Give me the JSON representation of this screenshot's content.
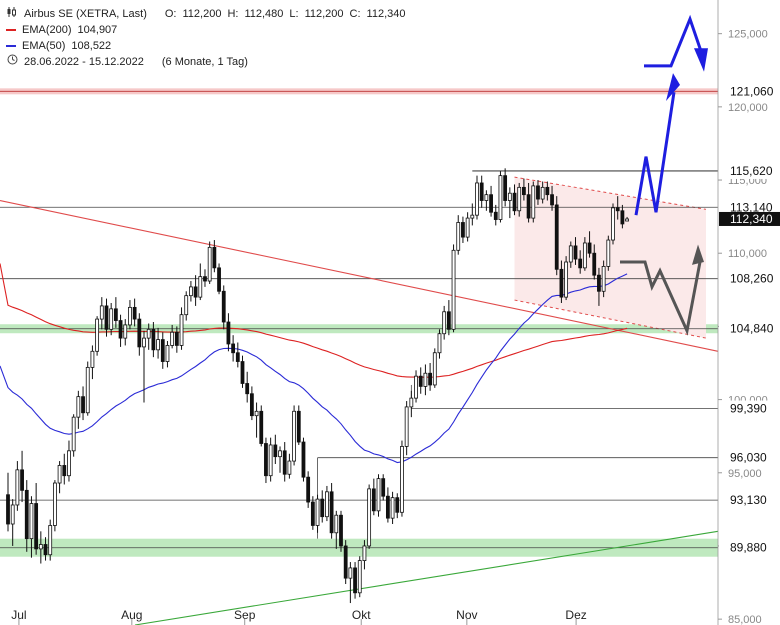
{
  "legend": {
    "instrument": "Airbus SE (XETRA, Last)",
    "open_label": "O:",
    "open": "112,200",
    "high_label": "H:",
    "high": "112,480",
    "low_label": "L:",
    "low": "112,200",
    "close_label": "C:",
    "close": "112,340",
    "ema200_label": "EMA(200)",
    "ema200_value": "104,907",
    "ema50_label": "EMA(50)",
    "ema50_value": "108,522",
    "period": "28.06.2022 - 15.12.2022",
    "period_detail": "(6 Monate, 1 Tag)",
    "chart_icon": "candlestick-icon",
    "clock_icon": "clock-icon"
  },
  "colors": {
    "ema200": "#dd2222",
    "ema50": "#2b2bd6",
    "candle": "#111111",
    "trend_red": "#e04b4b",
    "trend_green": "#3aa83a",
    "zone_green": "#bfe9bf",
    "zone_red": "#f6c9c9",
    "arrow_blue": "#1e1ee0",
    "arrow_gray": "#555555",
    "channel_fill": "#fbe9e9"
  },
  "chart_data": {
    "type": "candlestick",
    "title": "Airbus SE (XETRA, Last)",
    "ylim": [
      84.6,
      127.3
    ],
    "y_ticks": [
      85,
      90,
      95,
      100,
      105,
      110,
      115,
      120,
      125
    ],
    "y_tick_labels": [
      "85,000",
      "90,000",
      "95,000",
      "100,000",
      "105,000",
      "110,000",
      "115,000",
      "120,000",
      "125,000"
    ],
    "x_ticks": [
      {
        "label": "Jul",
        "date": "2022-07-01"
      },
      {
        "label": "Aug",
        "date": "2022-08-01"
      },
      {
        "label": "Sep",
        "date": "2022-09-01"
      },
      {
        "label": "Okt",
        "date": "2022-10-03"
      },
      {
        "label": "Nov",
        "date": "2022-11-01"
      },
      {
        "label": "Dez",
        "date": "2022-12-01"
      }
    ],
    "price_levels": [
      {
        "value": 121.06,
        "label": "121,060",
        "zone": "red"
      },
      {
        "value": 115.62,
        "label": "115,620"
      },
      {
        "value": 113.14,
        "label": "113,140"
      },
      {
        "value": 108.26,
        "label": "108,260"
      },
      {
        "value": 104.84,
        "label": "104,840",
        "zone": "green"
      },
      {
        "value": 99.39,
        "label": "99,390"
      },
      {
        "value": 96.03,
        "label": "96,030"
      },
      {
        "value": 93.13,
        "label": "93,130"
      },
      {
        "value": 89.88,
        "label": "89,880",
        "zone": "green"
      }
    ],
    "last_price": {
      "value": 112.34,
      "label": "112,340"
    },
    "ohlc": [
      [
        93.5,
        95.0,
        91.0,
        91.5
      ],
      [
        91.5,
        93.2,
        90.0,
        92.8
      ],
      [
        92.8,
        95.8,
        92.4,
        95.2
      ],
      [
        95.2,
        96.5,
        93.0,
        93.8
      ],
      [
        93.8,
        94.5,
        89.6,
        90.5
      ],
      [
        90.5,
        93.4,
        89.2,
        92.9
      ],
      [
        92.9,
        94.3,
        89.4,
        89.8
      ],
      [
        89.8,
        91.0,
        88.8,
        90.1
      ],
      [
        90.1,
        90.6,
        89.0,
        89.4
      ],
      [
        89.4,
        91.8,
        89.0,
        91.4
      ],
      [
        91.4,
        94.5,
        91.0,
        94.3
      ],
      [
        94.3,
        95.8,
        93.6,
        95.5
      ],
      [
        95.5,
        96.3,
        94.2,
        94.8
      ],
      [
        94.8,
        97.2,
        94.4,
        96.5
      ],
      [
        96.5,
        99.0,
        96.1,
        98.8
      ],
      [
        98.8,
        100.6,
        98.0,
        100.2
      ],
      [
        100.2,
        100.9,
        98.6,
        99.1
      ],
      [
        99.1,
        102.6,
        98.9,
        102.2
      ],
      [
        102.2,
        103.7,
        101.4,
        103.3
      ],
      [
        103.3,
        105.7,
        103.0,
        105.5
      ],
      [
        105.5,
        107.0,
        104.8,
        106.4
      ],
      [
        106.4,
        106.9,
        104.3,
        104.8
      ],
      [
        104.8,
        106.6,
        104.4,
        106.2
      ],
      [
        106.2,
        107.0,
        104.9,
        105.4
      ],
      [
        105.4,
        105.8,
        103.6,
        104.2
      ],
      [
        104.2,
        105.5,
        103.7,
        105.1
      ],
      [
        105.1,
        106.8,
        104.8,
        106.3
      ],
      [
        106.3,
        106.9,
        105.0,
        105.5
      ],
      [
        105.5,
        105.9,
        103.0,
        103.6
      ],
      [
        103.6,
        104.7,
        99.8,
        104.2
      ],
      [
        104.2,
        105.2,
        103.4,
        104.8
      ],
      [
        104.8,
        105.3,
        102.9,
        103.4
      ],
      [
        103.4,
        104.9,
        102.8,
        104.1
      ],
      [
        104.1,
        104.6,
        102.1,
        102.6
      ],
      [
        102.6,
        104.0,
        102.2,
        103.7
      ],
      [
        103.7,
        105.1,
        103.5,
        104.6
      ],
      [
        104.6,
        105.0,
        103.2,
        103.7
      ],
      [
        103.7,
        106.3,
        103.4,
        105.8
      ],
      [
        105.8,
        107.4,
        105.4,
        107.1
      ],
      [
        107.1,
        108.1,
        106.7,
        107.7
      ],
      [
        107.7,
        108.5,
        106.4,
        107.0
      ],
      [
        107.0,
        109.3,
        106.8,
        108.4
      ],
      [
        108.4,
        108.9,
        107.7,
        108.1
      ],
      [
        108.1,
        110.8,
        107.9,
        110.4
      ],
      [
        110.4,
        110.9,
        108.7,
        109.0
      ],
      [
        109.0,
        109.3,
        107.2,
        107.4
      ],
      [
        107.4,
        107.8,
        104.8,
        105.3
      ],
      [
        105.3,
        105.9,
        103.3,
        103.8
      ],
      [
        103.8,
        104.4,
        102.6,
        103.2
      ],
      [
        103.2,
        103.9,
        102.2,
        102.6
      ],
      [
        102.6,
        103.0,
        100.8,
        101.1
      ],
      [
        101.1,
        101.9,
        99.8,
        100.4
      ],
      [
        100.4,
        100.9,
        98.6,
        98.9
      ],
      [
        98.9,
        99.8,
        97.4,
        99.2
      ],
      [
        99.2,
        99.6,
        96.8,
        97.0
      ],
      [
        97.0,
        97.4,
        94.3,
        94.8
      ],
      [
        94.8,
        97.4,
        94.4,
        96.9
      ],
      [
        96.9,
        97.6,
        95.6,
        96.1
      ],
      [
        96.1,
        96.8,
        95.0,
        96.5
      ],
      [
        96.5,
        97.1,
        94.4,
        94.9
      ],
      [
        94.9,
        96.3,
        94.6,
        95.8
      ],
      [
        95.8,
        99.6,
        95.5,
        99.2
      ],
      [
        99.2,
        99.6,
        96.9,
        97.1
      ],
      [
        97.1,
        97.4,
        94.4,
        94.7
      ],
      [
        94.7,
        95.1,
        92.6,
        93.0
      ],
      [
        93.0,
        93.4,
        91.1,
        91.4
      ],
      [
        91.4,
        93.5,
        90.9,
        93.2
      ],
      [
        93.2,
        93.8,
        91.6,
        92.0
      ],
      [
        92.0,
        94.1,
        91.7,
        93.7
      ],
      [
        93.7,
        94.3,
        90.5,
        90.9
      ],
      [
        90.9,
        92.4,
        89.8,
        92.1
      ],
      [
        92.1,
        92.4,
        89.6,
        90.0
      ],
      [
        90.0,
        90.4,
        87.4,
        87.8
      ],
      [
        87.8,
        88.9,
        86.1,
        88.5
      ],
      [
        88.5,
        88.9,
        86.4,
        86.8
      ],
      [
        86.8,
        89.3,
        86.5,
        89.0
      ],
      [
        89.0,
        90.4,
        88.4,
        90.0
      ],
      [
        90.0,
        94.2,
        89.8,
        93.9
      ],
      [
        93.9,
        94.6,
        92.1,
        92.4
      ],
      [
        92.4,
        94.9,
        92.0,
        94.6
      ],
      [
        94.6,
        94.9,
        93.1,
        93.4
      ],
      [
        93.4,
        94.0,
        91.6,
        91.9
      ],
      [
        91.9,
        93.7,
        91.5,
        93.3
      ],
      [
        93.3,
        93.6,
        91.9,
        92.3
      ],
      [
        92.3,
        97.2,
        92.0,
        96.8
      ],
      [
        96.8,
        99.9,
        96.2,
        99.5
      ],
      [
        99.5,
        100.6,
        98.8,
        100.1
      ],
      [
        100.1,
        102.0,
        99.8,
        101.6
      ],
      [
        101.6,
        102.2,
        100.4,
        100.9
      ],
      [
        100.9,
        102.4,
        100.3,
        101.8
      ],
      [
        101.8,
        102.5,
        100.6,
        101.0
      ],
      [
        101.0,
        103.5,
        100.8,
        103.2
      ],
      [
        103.2,
        104.8,
        102.8,
        104.5
      ],
      [
        104.5,
        106.4,
        104.1,
        106.0
      ],
      [
        106.0,
        106.8,
        104.4,
        104.8
      ],
      [
        104.8,
        110.6,
        104.6,
        110.2
      ],
      [
        110.2,
        112.6,
        109.9,
        112.1
      ],
      [
        112.1,
        112.5,
        110.7,
        111.1
      ],
      [
        111.1,
        112.8,
        110.8,
        112.4
      ],
      [
        112.4,
        113.4,
        111.9,
        112.6
      ],
      [
        112.6,
        115.3,
        112.3,
        114.8
      ],
      [
        114.8,
        115.3,
        113.1,
        113.6
      ],
      [
        113.6,
        114.3,
        112.9,
        114.0
      ],
      [
        114.0,
        114.6,
        112.5,
        112.8
      ],
      [
        112.8,
        113.3,
        111.9,
        112.3
      ],
      [
        112.3,
        115.6,
        112.1,
        115.3
      ],
      [
        115.3,
        115.8,
        113.2,
        113.6
      ],
      [
        113.6,
        114.5,
        112.4,
        114.1
      ],
      [
        114.1,
        114.7,
        112.6,
        112.9
      ],
      [
        112.9,
        114.8,
        112.5,
        114.5
      ],
      [
        114.5,
        115.1,
        113.6,
        114.0
      ],
      [
        114.0,
        114.8,
        112.1,
        112.4
      ],
      [
        112.4,
        114.9,
        112.1,
        114.6
      ],
      [
        114.6,
        115.0,
        113.3,
        113.7
      ],
      [
        113.7,
        114.9,
        113.4,
        114.5
      ],
      [
        114.5,
        114.9,
        113.6,
        114.0
      ],
      [
        114.0,
        114.6,
        112.9,
        113.3
      ],
      [
        113.3,
        113.9,
        108.5,
        108.9
      ],
      [
        108.9,
        109.5,
        106.6,
        107.0
      ],
      [
        107.0,
        109.8,
        106.8,
        109.4
      ],
      [
        109.4,
        110.8,
        109.0,
        110.5
      ],
      [
        110.5,
        111.1,
        109.2,
        109.6
      ],
      [
        109.6,
        110.2,
        108.6,
        109.0
      ],
      [
        109.0,
        111.1,
        108.8,
        110.7
      ],
      [
        110.7,
        111.5,
        109.7,
        110.0
      ],
      [
        110.0,
        110.6,
        108.2,
        108.5
      ],
      [
        108.5,
        109.0,
        106.4,
        107.4
      ],
      [
        107.4,
        109.5,
        107.0,
        109.1
      ],
      [
        109.1,
        111.2,
        108.8,
        110.9
      ],
      [
        110.9,
        113.4,
        110.6,
        113.1
      ],
      [
        113.1,
        113.9,
        112.3,
        112.9
      ],
      [
        112.9,
        113.3,
        111.7,
        112.0
      ],
      [
        112.2,
        112.48,
        112.2,
        112.34
      ]
    ]
  }
}
